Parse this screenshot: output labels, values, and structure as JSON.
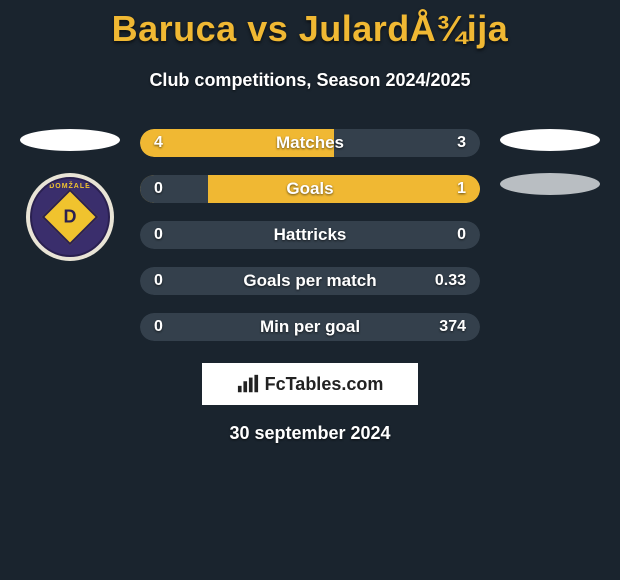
{
  "title": "Baruca vs JulardÅ¾ija",
  "subtitle": "Club competitions, Season 2024/2025",
  "date": "30 september 2024",
  "attribution": "FcTables.com",
  "colors": {
    "accent": "#f0b833",
    "dark_bar": "#34404c",
    "text": "#ffffff",
    "bg": "#1a242e"
  },
  "left_club_badge": {
    "top_text": "DOMŽALE",
    "letter": "D",
    "diamond_color": "#f0c32e",
    "inner_color": "#3a2e6c"
  },
  "stats": [
    {
      "label": "Matches",
      "left_value": "4",
      "right_value": "3",
      "left_width_pct": 57,
      "right_width_pct": 43,
      "left_color": "#f0b833",
      "right_color": "#34404c"
    },
    {
      "label": "Goals",
      "left_value": "0",
      "right_value": "1",
      "left_width_pct": 20,
      "right_width_pct": 80,
      "left_color": "#34404c",
      "right_color": "#f0b833"
    },
    {
      "label": "Hattricks",
      "left_value": "0",
      "right_value": "0",
      "left_width_pct": 100,
      "right_width_pct": 0,
      "left_color": "#34404c",
      "right_color": "#34404c"
    },
    {
      "label": "Goals per match",
      "left_value": "0",
      "right_value": "0.33",
      "left_width_pct": 100,
      "right_width_pct": 0,
      "left_color": "#34404c",
      "right_color": "#34404c"
    },
    {
      "label": "Min per goal",
      "left_value": "0",
      "right_value": "374",
      "left_width_pct": 100,
      "right_width_pct": 0,
      "left_color": "#34404c",
      "right_color": "#34404c"
    }
  ]
}
